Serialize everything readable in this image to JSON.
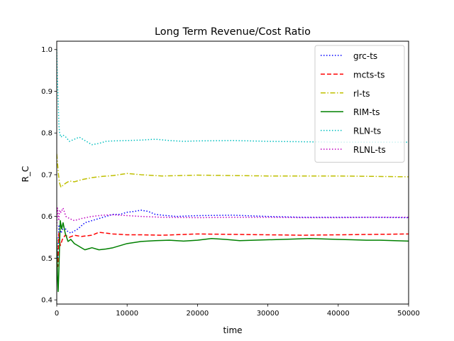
{
  "chart_data": {
    "type": "line",
    "title": "Long Term Revenue/Cost Ratio",
    "xlabel": "time",
    "ylabel": "R_C",
    "xlim": [
      0,
      50000
    ],
    "ylim": [
      0.39,
      1.02
    ],
    "xticks": [
      0,
      10000,
      20000,
      30000,
      40000,
      50000
    ],
    "yticks": [
      0.4,
      0.5,
      0.6,
      0.7,
      0.8,
      0.9,
      1.0
    ],
    "xtick_labels": [
      "0",
      "10000",
      "20000",
      "30000",
      "40000",
      "50000"
    ],
    "ytick_labels": [
      "0.4",
      "0.5",
      "0.6",
      "0.7",
      "0.8",
      "0.9",
      "1.0"
    ],
    "grid": false,
    "legend_position": "top-right",
    "series": [
      {
        "name": "grc-ts",
        "color": "#0000ff",
        "style": "dotted",
        "x": [
          0,
          150,
          300,
          600,
          1000,
          1500,
          2000,
          3000,
          4000,
          5000,
          6000,
          7000,
          8000,
          9000,
          10000,
          11000,
          12000,
          13000,
          14000,
          15000,
          17000,
          20000,
          25000,
          30000,
          35000,
          40000,
          45000,
          50000
        ],
        "y": [
          0.52,
          0.5,
          0.58,
          0.56,
          0.575,
          0.565,
          0.56,
          0.57,
          0.585,
          0.59,
          0.595,
          0.6,
          0.605,
          0.605,
          0.61,
          0.612,
          0.615,
          0.612,
          0.605,
          0.603,
          0.6,
          0.602,
          0.603,
          0.6,
          0.598,
          0.598,
          0.598,
          0.597
        ]
      },
      {
        "name": "mcts-ts",
        "color": "#ff0000",
        "style": "dashed",
        "x": [
          0,
          150,
          300,
          500,
          800,
          1200,
          1800,
          2500,
          3500,
          5000,
          6000,
          7000,
          8000,
          10000,
          12000,
          15000,
          20000,
          25000,
          30000,
          35000,
          40000,
          45000,
          50000
        ],
        "y": [
          0.5,
          0.48,
          0.56,
          0.53,
          0.545,
          0.555,
          0.55,
          0.555,
          0.552,
          0.555,
          0.562,
          0.56,
          0.558,
          0.556,
          0.556,
          0.555,
          0.558,
          0.557,
          0.556,
          0.555,
          0.556,
          0.557,
          0.558
        ]
      },
      {
        "name": "rl-ts",
        "color": "#bfbf00",
        "style": "dashdot",
        "x": [
          0,
          100,
          250,
          400,
          600,
          900,
          1300,
          1800,
          2500,
          3500,
          5000,
          6500,
          8000,
          10000,
          12000,
          15000,
          20000,
          25000,
          30000,
          35000,
          40000,
          45000,
          50000
        ],
        "y": [
          0.75,
          0.73,
          0.7,
          0.68,
          0.67,
          0.675,
          0.68,
          0.685,
          0.683,
          0.688,
          0.693,
          0.696,
          0.698,
          0.703,
          0.7,
          0.697,
          0.699,
          0.698,
          0.697,
          0.697,
          0.697,
          0.696,
          0.695
        ]
      },
      {
        "name": "RIM-ts",
        "color": "#008000",
        "style": "solid",
        "x": [
          0,
          100,
          200,
          300,
          400,
          500,
          700,
          900,
          1200,
          1600,
          2000,
          2500,
          3000,
          3500,
          4000,
          5000,
          6000,
          7000,
          8000,
          10000,
          12000,
          14000,
          16000,
          18000,
          20000,
          22000,
          24000,
          26000,
          28000,
          30000,
          32000,
          34000,
          36000,
          38000,
          40000,
          42000,
          44000,
          46000,
          48000,
          50000
        ],
        "y": [
          0.55,
          0.46,
          0.42,
          0.47,
          0.53,
          0.59,
          0.57,
          0.585,
          0.56,
          0.54,
          0.545,
          0.535,
          0.53,
          0.525,
          0.52,
          0.525,
          0.52,
          0.522,
          0.525,
          0.535,
          0.54,
          0.542,
          0.543,
          0.541,
          0.543,
          0.547,
          0.545,
          0.542,
          0.543,
          0.544,
          0.545,
          0.546,
          0.547,
          0.546,
          0.545,
          0.544,
          0.543,
          0.543,
          0.542,
          0.541
        ]
      },
      {
        "name": "RLN-ts",
        "color": "#00bfbf",
        "style": "dotted",
        "x": [
          0,
          100,
          200,
          300,
          400,
          600,
          900,
          1300,
          1800,
          2500,
          3200,
          4000,
          5000,
          6000,
          7000,
          8000,
          10000,
          12000,
          14000,
          16000,
          18000,
          20000,
          25000,
          30000,
          35000,
          40000,
          45000,
          50000
        ],
        "y": [
          1.0,
          0.93,
          0.88,
          0.82,
          0.8,
          0.79,
          0.795,
          0.79,
          0.78,
          0.785,
          0.79,
          0.782,
          0.772,
          0.775,
          0.78,
          0.781,
          0.782,
          0.783,
          0.785,
          0.782,
          0.78,
          0.781,
          0.782,
          0.78,
          0.779,
          0.778,
          0.778,
          0.778
        ]
      },
      {
        "name": "RLNL-ts",
        "color": "#bf00bf",
        "style": "dotted",
        "x": [
          0,
          100,
          200,
          300,
          400,
          600,
          900,
          1300,
          1800,
          2500,
          3500,
          5000,
          6500,
          8000,
          10000,
          12000,
          15000,
          20000,
          25000,
          30000,
          35000,
          40000,
          45000,
          50000
        ],
        "y": [
          0.57,
          0.62,
          0.6,
          0.59,
          0.615,
          0.61,
          0.62,
          0.6,
          0.595,
          0.59,
          0.595,
          0.6,
          0.603,
          0.604,
          0.602,
          0.6,
          0.598,
          0.597,
          0.598,
          0.598,
          0.597,
          0.597,
          0.598,
          0.598
        ]
      }
    ]
  }
}
